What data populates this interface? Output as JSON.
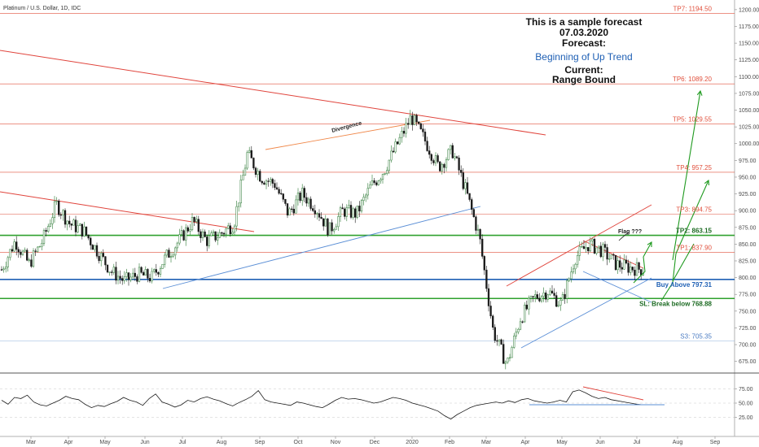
{
  "symbol_header": "Platinum / U.S. Dollar, 1D, IDC",
  "annotation": {
    "line1": "This is a sample forecast",
    "line2": "07.03.2020",
    "line3": "Forecast:",
    "line4": "Beginning of Up Trend",
    "line5": "Current:",
    "line6": "Range Bound"
  },
  "drawing_labels": {
    "divergence": "Divergence",
    "flag": "Flag ???"
  },
  "colors": {
    "up": "#2d7a36",
    "down": "#1a1a1a",
    "tp": "#e0503c",
    "green": "#2fa12e",
    "blue": "#1e5fb4",
    "trend_red": "#e0443c",
    "trend_blue": "#5b8fd6",
    "forecast_green": "#1f9a1f",
    "divergence_line": "#f0884a"
  },
  "chart_data": [
    {
      "type": "candlestick",
      "title": "Platinum / U.S. Dollar, 1D, IDC",
      "ylim": [
        675,
        1212
      ],
      "y_ticks": [
        675,
        700,
        725,
        750,
        775,
        800,
        825,
        850,
        875,
        900,
        925,
        950,
        975,
        1000,
        1025,
        1050,
        1075,
        1100,
        1125,
        1150,
        1175,
        1200
      ],
      "x_tick_labels": [
        "Mar",
        "Apr",
        "May",
        "Jun",
        "Jul",
        "Aug",
        "Sep",
        "Oct",
        "Nov",
        "Dec",
        "2020",
        "Feb",
        "Mar",
        "Apr",
        "May",
        "Jun",
        "Jul",
        "Aug",
        "Sep"
      ],
      "levels": [
        {
          "label": "TP7: 1194.50",
          "value": 1194.5,
          "kind": "tp"
        },
        {
          "label": "TP6: 1089.20",
          "value": 1089.2,
          "kind": "tp"
        },
        {
          "label": "TP5: 1029.55",
          "value": 1029.55,
          "kind": "tp"
        },
        {
          "label": "TP4: 957.25",
          "value": 957.25,
          "kind": "tp"
        },
        {
          "label": "TP3: 894.75",
          "value": 894.75,
          "kind": "tp"
        },
        {
          "label": "TP2: 863.15",
          "value": 863.15,
          "kind": "tp2"
        },
        {
          "label": "TP1: 837.90",
          "value": 837.9,
          "kind": "tp"
        },
        {
          "label": "Buy Above 797.31",
          "value": 797.31,
          "kind": "buy"
        },
        {
          "label": "SL: Break below 768.88",
          "value": 768.88,
          "kind": "sl"
        },
        {
          "label": "S3: 705.35",
          "value": 705.35,
          "kind": "s3"
        }
      ],
      "price_path": [
        [
          "Mar",
          812
        ],
        [
          "Mar",
          855
        ],
        [
          "Mar",
          820
        ],
        [
          "Apr",
          855
        ],
        [
          "Apr",
          910
        ],
        [
          "Apr",
          880
        ],
        [
          "May",
          870
        ],
        [
          "May",
          840
        ],
        [
          "May",
          810
        ],
        [
          "Jun",
          795
        ],
        [
          "Jun",
          805
        ],
        [
          "Jun",
          800
        ],
        [
          "Jul",
          830
        ],
        [
          "Jul",
          855
        ],
        [
          "Aug",
          885
        ],
        [
          "Aug",
          855
        ],
        [
          "Aug",
          865
        ],
        [
          "Sep",
          880
        ],
        [
          "Sep",
          985
        ],
        [
          "Sep",
          950
        ],
        [
          "Oct",
          940
        ],
        [
          "Oct",
          895
        ],
        [
          "Oct",
          925
        ],
        [
          "Nov",
          905
        ],
        [
          "Nov",
          870
        ],
        [
          "Nov",
          900
        ],
        [
          "Dec",
          895
        ],
        [
          "Dec",
          935
        ],
        [
          "Dec",
          960
        ],
        [
          "2020",
          1000
        ],
        [
          "2020",
          1040
        ],
        [
          "2020",
          1005
        ],
        [
          "Feb",
          965
        ],
        [
          "Feb",
          990
        ],
        [
          "Feb",
          930
        ],
        [
          "Mar",
          860
        ],
        [
          "Mar",
          720
        ],
        [
          "Mar",
          670
        ],
        [
          "Apr",
          740
        ],
        [
          "Apr",
          770
        ],
        [
          "Apr",
          780
        ],
        [
          "May",
          760
        ],
        [
          "May",
          830
        ],
        [
          "May",
          850
        ],
        [
          "Jun",
          840
        ],
        [
          "Jun",
          820
        ],
        [
          "Jun",
          815
        ],
        [
          "Jul",
          812
        ]
      ]
    },
    {
      "type": "line",
      "title": "",
      "ylim": [
        0,
        100
      ],
      "y_ticks": [
        25,
        50,
        75
      ],
      "series": [
        {
          "values": [
            55,
            48,
            60,
            58,
            64,
            52,
            47,
            45,
            50,
            55,
            62,
            58,
            56,
            48,
            42,
            46,
            44,
            49,
            53,
            60,
            55,
            52,
            46,
            58,
            66,
            52,
            48,
            43,
            47,
            55,
            52,
            58,
            61,
            57,
            54,
            49,
            45,
            51,
            56,
            62,
            72,
            56,
            52,
            50,
            48,
            46,
            52,
            50,
            47,
            44,
            42,
            48,
            55,
            60,
            57,
            58,
            56,
            53,
            50,
            52,
            56,
            60,
            58,
            55,
            50,
            47,
            44,
            40,
            36,
            28,
            22,
            30,
            36,
            42,
            46,
            48,
            50,
            52,
            50,
            54,
            51,
            56,
            58,
            54,
            52,
            50,
            52,
            55,
            52,
            70,
            73,
            68,
            62,
            58,
            60,
            56,
            54,
            52,
            50,
            48,
            47
          ]
        }
      ]
    }
  ]
}
